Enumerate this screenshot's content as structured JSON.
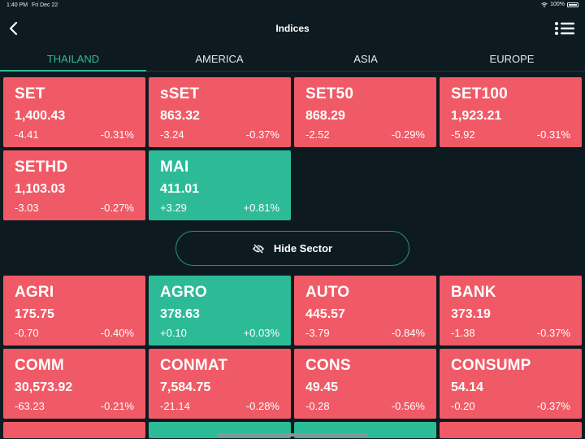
{
  "status_bar": {
    "time": "1:40 PM",
    "date": "Fri Dec 22",
    "battery": "100%"
  },
  "nav": {
    "title": "Indices"
  },
  "tabs": [
    {
      "label": "THAILAND",
      "active": true
    },
    {
      "label": "AMERICA",
      "active": false
    },
    {
      "label": "ASIA",
      "active": false
    },
    {
      "label": "EUROPE",
      "active": false
    }
  ],
  "indices": [
    {
      "name": "SET",
      "value": "1,400.43",
      "change": "-4.41",
      "pct": "-0.31%",
      "dir": "down"
    },
    {
      "name": "sSET",
      "value": "863.32",
      "change": "-3.24",
      "pct": "-0.37%",
      "dir": "down"
    },
    {
      "name": "SET50",
      "value": "868.29",
      "change": "-2.52",
      "pct": "-0.29%",
      "dir": "down"
    },
    {
      "name": "SET100",
      "value": "1,923.21",
      "change": "-5.92",
      "pct": "-0.31%",
      "dir": "down"
    },
    {
      "name": "SETHD",
      "value": "1,103.03",
      "change": "-3.03",
      "pct": "-0.27%",
      "dir": "down"
    },
    {
      "name": "MAI",
      "value": "411.01",
      "change": "+3.29",
      "pct": "+0.81%",
      "dir": "up"
    }
  ],
  "hide_sector": {
    "label": "Hide Sector",
    "icon": "eye-slash-icon"
  },
  "sectors": [
    {
      "name": "AGRI",
      "value": "175.75",
      "change": "-0.70",
      "pct": "-0.40%",
      "dir": "down"
    },
    {
      "name": "AGRO",
      "value": "378.63",
      "change": "+0.10",
      "pct": "+0.03%",
      "dir": "up"
    },
    {
      "name": "AUTO",
      "value": "445.57",
      "change": "-3.79",
      "pct": "-0.84%",
      "dir": "down"
    },
    {
      "name": "BANK",
      "value": "373.19",
      "change": "-1.38",
      "pct": "-0.37%",
      "dir": "down"
    },
    {
      "name": "COMM",
      "value": "30,573.92",
      "change": "-63.23",
      "pct": "-0.21%",
      "dir": "down"
    },
    {
      "name": "CONMAT",
      "value": "7,584.75",
      "change": "-21.14",
      "pct": "-0.28%",
      "dir": "down"
    },
    {
      "name": "CONS",
      "value": "49.45",
      "change": "-0.28",
      "pct": "-0.56%",
      "dir": "down"
    },
    {
      "name": "CONSUMP",
      "value": "54.14",
      "change": "-0.20",
      "pct": "-0.37%",
      "dir": "down"
    }
  ],
  "partial_row": [
    {
      "dir": "down"
    },
    {
      "dir": "up"
    },
    {
      "dir": "up"
    },
    {
      "dir": "down"
    }
  ],
  "colors": {
    "background": "#0d1b21",
    "down": "#f05a66",
    "up": "#2dbb97",
    "accent": "#2fb996"
  }
}
